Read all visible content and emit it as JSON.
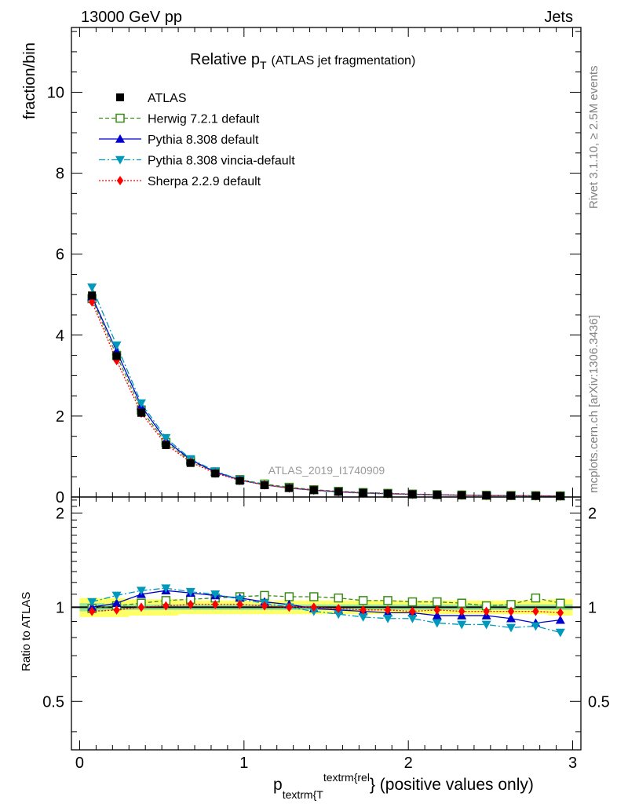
{
  "header": {
    "left": "13000 GeV pp",
    "right": "Jets"
  },
  "side_labels": {
    "rivet": "Rivet 3.1.10, ≥ 2.5M events",
    "mcplots": "mcplots.cern.ch [arXiv:1306.3436]"
  },
  "chart_data": {
    "type": "line",
    "title_main": "Relative p",
    "title_sub": "T",
    "title_tail": "(ATLAS jet fragmentation)",
    "watermark": "ATLAS_2019_I1740909",
    "xlabel_main": "p",
    "xlabel_sub": "textrm{T",
    "xlabel_sup": "textrm{rel",
    "xlabel_tail": "} (positive values only)",
    "ylabel": "fraction/bin",
    "ratio_ylabel": "Ratio to ATLAS",
    "x": [
      0.075,
      0.225,
      0.375,
      0.525,
      0.675,
      0.825,
      0.975,
      1.125,
      1.275,
      1.425,
      1.575,
      1.725,
      1.875,
      2.025,
      2.175,
      2.325,
      2.475,
      2.625,
      2.775,
      2.925
    ],
    "xlim": [
      -0.05,
      3.05
    ],
    "ylim": [
      0,
      11.6
    ],
    "ratio_ylim": [
      0.35,
      2.25
    ],
    "xticks": [
      0,
      1,
      2,
      3
    ],
    "xtick_labels": [
      "0",
      "1",
      "2",
      "3"
    ],
    "yticks": [
      0,
      2,
      4,
      6,
      8,
      10
    ],
    "ytick_labels": [
      "0",
      "2",
      "4",
      "6",
      "8",
      "10"
    ],
    "ratio_yticks": [
      0.5,
      1,
      2
    ],
    "ratio_ytick_labels": [
      "0.5",
      "1",
      "2"
    ],
    "band": {
      "outer_color": "#ffff66",
      "inner_color": "#99e699",
      "outer_halfwidth": [
        0.07,
        0.07,
        0.06,
        0.06,
        0.05,
        0.05,
        0.05,
        0.05,
        0.05,
        0.05,
        0.05,
        0.05,
        0.05,
        0.05,
        0.05,
        0.05,
        0.05,
        0.05,
        0.05,
        0.06
      ],
      "inner_halfwidth": [
        0.03,
        0.02,
        0.02,
        0.02,
        0.02,
        0.02,
        0.02,
        0.02,
        0.02,
        0.02,
        0.02,
        0.02,
        0.02,
        0.02,
        0.02,
        0.02,
        0.02,
        0.02,
        0.02,
        0.02
      ]
    },
    "series": [
      {
        "name": "ATLAS",
        "key": "atlas",
        "color": "#000000",
        "marker": "square",
        "style": "data",
        "values": [
          4.98,
          3.48,
          2.08,
          1.28,
          0.84,
          0.58,
          0.4,
          0.29,
          0.22,
          0.17,
          0.13,
          0.105,
          0.085,
          0.068,
          0.056,
          0.047,
          0.04,
          0.034,
          0.03,
          0.026
        ],
        "ratio": [
          1,
          1,
          1,
          1,
          1,
          1,
          1,
          1,
          1,
          1,
          1,
          1,
          1,
          1,
          1,
          1,
          1,
          1,
          1,
          1
        ]
      },
      {
        "name": "Herwig 7.2.1 default",
        "key": "herwig",
        "color": "#3a8a1a",
        "marker": "open-square",
        "style": "dashed",
        "values": [
          4.9,
          3.5,
          2.15,
          1.35,
          0.89,
          0.62,
          0.43,
          0.32,
          0.24,
          0.18,
          0.14,
          0.11,
          0.09,
          0.072,
          0.058,
          0.049,
          0.041,
          0.035,
          0.032,
          0.027
        ],
        "ratio": [
          0.99,
          1.01,
          1.03,
          1.05,
          1.06,
          1.07,
          1.08,
          1.09,
          1.08,
          1.08,
          1.07,
          1.05,
          1.05,
          1.04,
          1.04,
          1.03,
          1.01,
          1.02,
          1.07,
          1.03
        ]
      },
      {
        "name": "Pythia 8.308 default",
        "key": "pythia",
        "color": "#0000cc",
        "marker": "triangle-up",
        "style": "solid",
        "values": [
          4.95,
          3.6,
          2.25,
          1.4,
          0.92,
          0.62,
          0.42,
          0.3,
          0.22,
          0.17,
          0.13,
          0.1,
          0.083,
          0.066,
          0.053,
          0.044,
          0.037,
          0.032,
          0.027,
          0.024
        ],
        "ratio": [
          1.0,
          1.03,
          1.1,
          1.13,
          1.11,
          1.09,
          1.07,
          1.04,
          1.02,
          0.99,
          0.98,
          0.97,
          0.96,
          0.96,
          0.94,
          0.94,
          0.94,
          0.92,
          0.89,
          0.91
        ]
      },
      {
        "name": "Pythia 8.308 vincia-default",
        "key": "vincia",
        "color": "#0099bb",
        "marker": "triangle-down",
        "style": "dashdot",
        "values": [
          5.18,
          3.75,
          2.32,
          1.46,
          0.94,
          0.64,
          0.43,
          0.3,
          0.22,
          0.16,
          0.12,
          0.096,
          0.077,
          0.062,
          0.05,
          0.042,
          0.035,
          0.03,
          0.026,
          0.022
        ],
        "ratio": [
          1.04,
          1.09,
          1.13,
          1.15,
          1.12,
          1.1,
          1.06,
          1.03,
          1.0,
          0.97,
          0.95,
          0.93,
          0.92,
          0.92,
          0.89,
          0.88,
          0.88,
          0.86,
          0.87,
          0.83
        ]
      },
      {
        "name": "Sherpa 2.2.9 default",
        "key": "sherpa",
        "color": "#ff0000",
        "marker": "diamond",
        "style": "dotted",
        "values": [
          4.82,
          3.37,
          2.07,
          1.3,
          0.86,
          0.59,
          0.41,
          0.3,
          0.22,
          0.17,
          0.13,
          0.1,
          0.082,
          0.066,
          0.054,
          0.046,
          0.039,
          0.033,
          0.029,
          0.025
        ],
        "ratio": [
          0.97,
          0.98,
          1.0,
          1.01,
          1.02,
          1.02,
          1.02,
          1.01,
          1.0,
          1.0,
          0.99,
          0.98,
          0.98,
          0.97,
          0.98,
          0.97,
          0.97,
          0.97,
          0.97,
          0.96
        ]
      }
    ]
  }
}
